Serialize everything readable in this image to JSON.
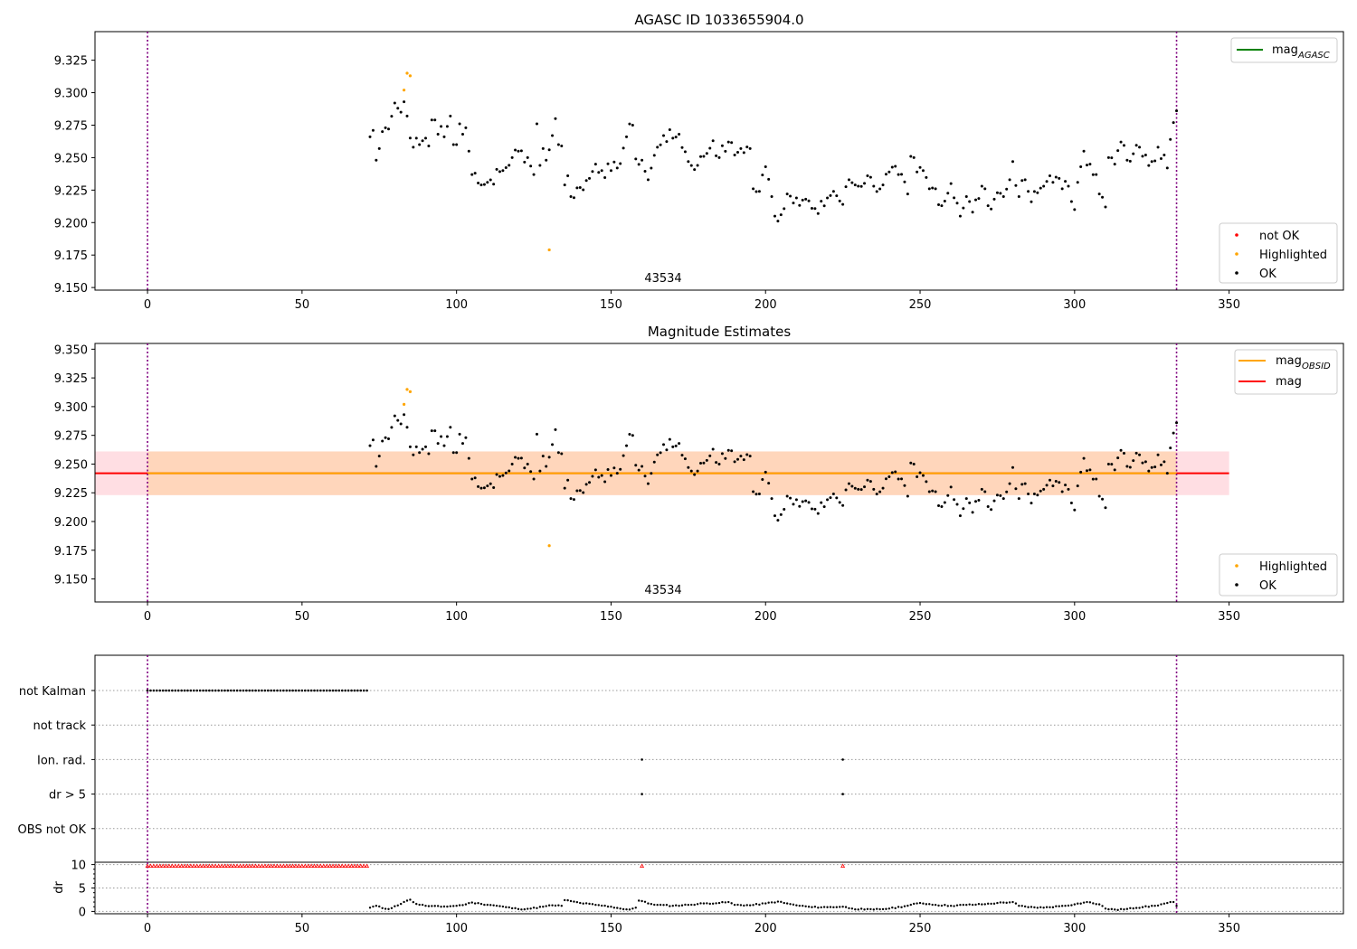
{
  "chart_data": [
    {
      "type": "scatter",
      "title": "AGASC ID 1033655904.0",
      "xlim": [
        -17,
        387
      ],
      "ylim": [
        9.148,
        9.347
      ],
      "xticks": [
        0,
        50,
        100,
        150,
        200,
        250,
        300,
        350
      ],
      "yticks": [
        9.15,
        9.175,
        9.2,
        9.225,
        9.25,
        9.275,
        9.3,
        9.325
      ],
      "vlines": [
        0,
        333
      ],
      "annotation": {
        "text": "43534",
        "x": 167,
        "y": 9.154
      },
      "legend_upper": [
        {
          "label_main": "mag",
          "label_sub": "AGASC",
          "color": "#008000"
        }
      ],
      "legend_lower": [
        {
          "label": "not OK",
          "color": "#ff0000"
        },
        {
          "label": "Highlighted",
          "color": "#ffa500"
        },
        {
          "label": "OK",
          "color": "#000000"
        }
      ],
      "highlighted": [
        [
          83,
          9.302
        ],
        [
          84,
          9.315
        ],
        [
          85,
          9.313
        ],
        [
          130,
          9.179
        ]
      ],
      "ok_anchors": [
        [
          72,
          9.266
        ],
        [
          73,
          9.271
        ],
        [
          74,
          9.248
        ],
        [
          75,
          9.257
        ],
        [
          76,
          9.27
        ],
        [
          77,
          9.273
        ],
        [
          78,
          9.272
        ],
        [
          80,
          9.292
        ],
        [
          81,
          9.288
        ],
        [
          82,
          9.285
        ],
        [
          83,
          9.293
        ],
        [
          86,
          9.258
        ],
        [
          87,
          9.265
        ],
        [
          88,
          9.26
        ],
        [
          89,
          9.263
        ],
        [
          90,
          9.265
        ],
        [
          91,
          9.259
        ],
        [
          92,
          9.279
        ],
        [
          93,
          9.279
        ],
        [
          94,
          9.268
        ],
        [
          95,
          9.274
        ],
        [
          96,
          9.266
        ],
        [
          97,
          9.274
        ],
        [
          98,
          9.282
        ],
        [
          99,
          9.26
        ],
        [
          100,
          9.26
        ],
        [
          101,
          9.276
        ],
        [
          102,
          9.268
        ],
        [
          103,
          9.273
        ],
        [
          104,
          9.255
        ],
        [
          105,
          9.237
        ],
        [
          106,
          9.238
        ],
        [
          108,
          9.229
        ],
        [
          110,
          9.231
        ],
        [
          115,
          9.24
        ],
        [
          118,
          9.25
        ],
        [
          120,
          9.255
        ],
        [
          123,
          9.25
        ],
        [
          125,
          9.237
        ],
        [
          126,
          9.276
        ],
        [
          127,
          9.244
        ],
        [
          128,
          9.257
        ],
        [
          129,
          9.248
        ],
        [
          130,
          9.256
        ],
        [
          131,
          9.267
        ],
        [
          132,
          9.28
        ],
        [
          133,
          9.26
        ],
        [
          134,
          9.259
        ],
        [
          135,
          9.229
        ],
        [
          136,
          9.236
        ],
        [
          137,
          9.22
        ],
        [
          140,
          9.227
        ],
        [
          143,
          9.234
        ],
        [
          145,
          9.245
        ],
        [
          147,
          9.24
        ],
        [
          150,
          9.24
        ],
        [
          152,
          9.242
        ],
        [
          155,
          9.266
        ],
        [
          157,
          9.275
        ],
        [
          158,
          9.249
        ],
        [
          160,
          9.248
        ],
        [
          162,
          9.233
        ],
        [
          165,
          9.258
        ],
        [
          167,
          9.267
        ],
        [
          170,
          9.265
        ],
        [
          172,
          9.268
        ],
        [
          175,
          9.247
        ],
        [
          178,
          9.244
        ],
        [
          180,
          9.251
        ],
        [
          183,
          9.263
        ],
        [
          185,
          9.25
        ],
        [
          188,
          9.262
        ],
        [
          190,
          9.252
        ],
        [
          192,
          9.257
        ],
        [
          195,
          9.257
        ],
        [
          196,
          9.226
        ],
        [
          198,
          9.224
        ],
        [
          200,
          9.243
        ],
        [
          202,
          9.22
        ],
        [
          203,
          9.205
        ],
        [
          205,
          9.206
        ],
        [
          207,
          9.222
        ],
        [
          210,
          9.219
        ],
        [
          213,
          9.218
        ],
        [
          215,
          9.211
        ],
        [
          217,
          9.207
        ],
        [
          220,
          9.219
        ],
        [
          222,
          9.224
        ],
        [
          225,
          9.214
        ],
        [
          227,
          9.233
        ],
        [
          230,
          9.228
        ],
        [
          233,
          9.236
        ],
        [
          235,
          9.228
        ],
        [
          238,
          9.229
        ],
        [
          240,
          9.239
        ],
        [
          243,
          9.237
        ],
        [
          246,
          9.222
        ],
        [
          247,
          9.251
        ],
        [
          248,
          9.25
        ],
        [
          249,
          9.239
        ],
        [
          251,
          9.24
        ],
        [
          253,
          9.226
        ],
        [
          255,
          9.226
        ],
        [
          257,
          9.213
        ],
        [
          260,
          9.23
        ],
        [
          262,
          9.215
        ],
        [
          263,
          9.205
        ],
        [
          265,
          9.22
        ],
        [
          267,
          9.208
        ],
        [
          270,
          9.228
        ],
        [
          272,
          9.213
        ],
        [
          275,
          9.223
        ],
        [
          277,
          9.22
        ],
        [
          279,
          9.233
        ],
        [
          280,
          9.247
        ],
        [
          282,
          9.22
        ],
        [
          284,
          9.233
        ],
        [
          286,
          9.216
        ],
        [
          288,
          9.223
        ],
        [
          290,
          9.228
        ],
        [
          292,
          9.236
        ],
        [
          294,
          9.235
        ],
        [
          296,
          9.226
        ],
        [
          298,
          9.228
        ],
        [
          300,
          9.21
        ],
        [
          301,
          9.231
        ],
        [
          302,
          9.243
        ],
        [
          303,
          9.255
        ],
        [
          305,
          9.245
        ],
        [
          307,
          9.237
        ],
        [
          308,
          9.222
        ],
        [
          310,
          9.212
        ],
        [
          311,
          9.25
        ],
        [
          313,
          9.245
        ],
        [
          315,
          9.262
        ],
        [
          317,
          9.248
        ],
        [
          319,
          9.253
        ],
        [
          321,
          9.258
        ],
        [
          323,
          9.252
        ],
        [
          325,
          9.247
        ],
        [
          327,
          9.258
        ],
        [
          329,
          9.252
        ],
        [
          330,
          9.242
        ],
        [
          331,
          9.264
        ],
        [
          332,
          9.277
        ],
        [
          333,
          9.286
        ]
      ]
    },
    {
      "type": "scatter",
      "title": "Magnitude Estimates",
      "xlim": [
        -17,
        387
      ],
      "ylim": [
        9.13,
        9.355
      ],
      "xticks": [
        0,
        50,
        100,
        150,
        200,
        250,
        300,
        350
      ],
      "yticks": [
        9.15,
        9.175,
        9.2,
        9.225,
        9.25,
        9.275,
        9.3,
        9.325,
        9.35
      ],
      "vlines": [
        0,
        333
      ],
      "annotation": {
        "text": "43534",
        "x": 167,
        "y": 9.135
      },
      "bands": [
        {
          "x": [
            -17,
            350
          ],
          "y": [
            9.223,
            9.261
          ],
          "color": "#ffb6c1",
          "opacity": 0.45
        },
        {
          "x": [
            0,
            333
          ],
          "y": [
            9.223,
            9.261
          ],
          "color": "#ffd0a0",
          "opacity": 0.6
        }
      ],
      "lines": [
        {
          "x": [
            -17,
            350
          ],
          "y": 9.242,
          "color": "#ff0000"
        },
        {
          "x": [
            0,
            333
          ],
          "y": 9.242,
          "color": "#ffa500"
        }
      ],
      "legend_upper": [
        {
          "label_main": "mag",
          "label_sub": "OBSID",
          "color": "#ffa500"
        },
        {
          "label_main": "mag",
          "label_sub": "",
          "color": "#ff0000"
        }
      ],
      "legend_lower": [
        {
          "label": "Highlighted",
          "color": "#ffa500"
        },
        {
          "label": "OK",
          "color": "#000000"
        }
      ],
      "same_points_as": 0
    },
    {
      "type": "scatter",
      "title": "",
      "xlim": [
        -17,
        387
      ],
      "xticks": [
        0,
        50,
        100,
        150,
        200,
        250,
        300,
        350
      ],
      "flag_rows": [
        "not Kalman",
        "not track",
        "Ion. rad.",
        "dr > 5",
        "OBS not OK"
      ],
      "flag_points": {
        "not Kalman": {
          "range": [
            0,
            71
          ],
          "step": 1
        },
        "Ion. rad.": {
          "points": [
            160,
            225
          ]
        },
        "dr > 5": {
          "points": [
            160,
            225
          ]
        }
      },
      "vlines": [
        0,
        333
      ],
      "dr": {
        "ylabel": "dr",
        "ylim": [
          -0.5,
          10.5
        ],
        "yticks": [
          0,
          5,
          10
        ],
        "capped_red": {
          "range": [
            0,
            71
          ],
          "value": 9.7,
          "extra": [
            160,
            225
          ]
        },
        "ok_anchors": [
          [
            72,
            0.8
          ],
          [
            74,
            1.2
          ],
          [
            76,
            0.7
          ],
          [
            78,
            0.5
          ],
          [
            80,
            1.1
          ],
          [
            82,
            1.6
          ],
          [
            84,
            2.3
          ],
          [
            85,
            2.5
          ],
          [
            87,
            1.6
          ],
          [
            90,
            1.2
          ],
          [
            95,
            1.0
          ],
          [
            100,
            1.2
          ],
          [
            103,
            1.5
          ],
          [
            105,
            1.9
          ],
          [
            108,
            1.6
          ],
          [
            112,
            1.3
          ],
          [
            116,
            0.9
          ],
          [
            120,
            0.5
          ],
          [
            124,
            0.6
          ],
          [
            128,
            1.0
          ],
          [
            131,
            1.3
          ],
          [
            134,
            1.2
          ],
          [
            135,
            2.4
          ],
          [
            137,
            2.2
          ],
          [
            140,
            1.8
          ],
          [
            145,
            1.4
          ],
          [
            150,
            1.0
          ],
          [
            153,
            0.6
          ],
          [
            156,
            0.4
          ],
          [
            158,
            0.8
          ],
          [
            159,
            2.3
          ],
          [
            160,
            2.2
          ],
          [
            162,
            1.7
          ],
          [
            165,
            1.4
          ],
          [
            170,
            1.2
          ],
          [
            175,
            1.4
          ],
          [
            180,
            1.7
          ],
          [
            185,
            1.8
          ],
          [
            188,
            2.0
          ],
          [
            190,
            1.4
          ],
          [
            195,
            1.3
          ],
          [
            200,
            1.7
          ],
          [
            204,
            2.1
          ],
          [
            206,
            1.8
          ],
          [
            210,
            1.3
          ],
          [
            215,
            0.9
          ],
          [
            220,
            0.9
          ],
          [
            225,
            1.0
          ],
          [
            228,
            0.6
          ],
          [
            232,
            0.4
          ],
          [
            235,
            0.4
          ],
          [
            240,
            0.6
          ],
          [
            245,
            1.1
          ],
          [
            250,
            1.8
          ],
          [
            255,
            1.4
          ],
          [
            260,
            1.2
          ],
          [
            265,
            1.4
          ],
          [
            270,
            1.5
          ],
          [
            275,
            1.8
          ],
          [
            280,
            2.0
          ],
          [
            282,
            1.2
          ],
          [
            285,
            0.9
          ],
          [
            290,
            0.8
          ],
          [
            295,
            1.1
          ],
          [
            300,
            1.5
          ],
          [
            304,
            2.0
          ],
          [
            308,
            1.5
          ],
          [
            310,
            0.6
          ],
          [
            314,
            0.3
          ],
          [
            318,
            0.7
          ],
          [
            322,
            0.9
          ],
          [
            326,
            1.2
          ],
          [
            330,
            1.8
          ],
          [
            332,
            2.0
          ],
          [
            333,
            1.2
          ]
        ]
      }
    }
  ]
}
